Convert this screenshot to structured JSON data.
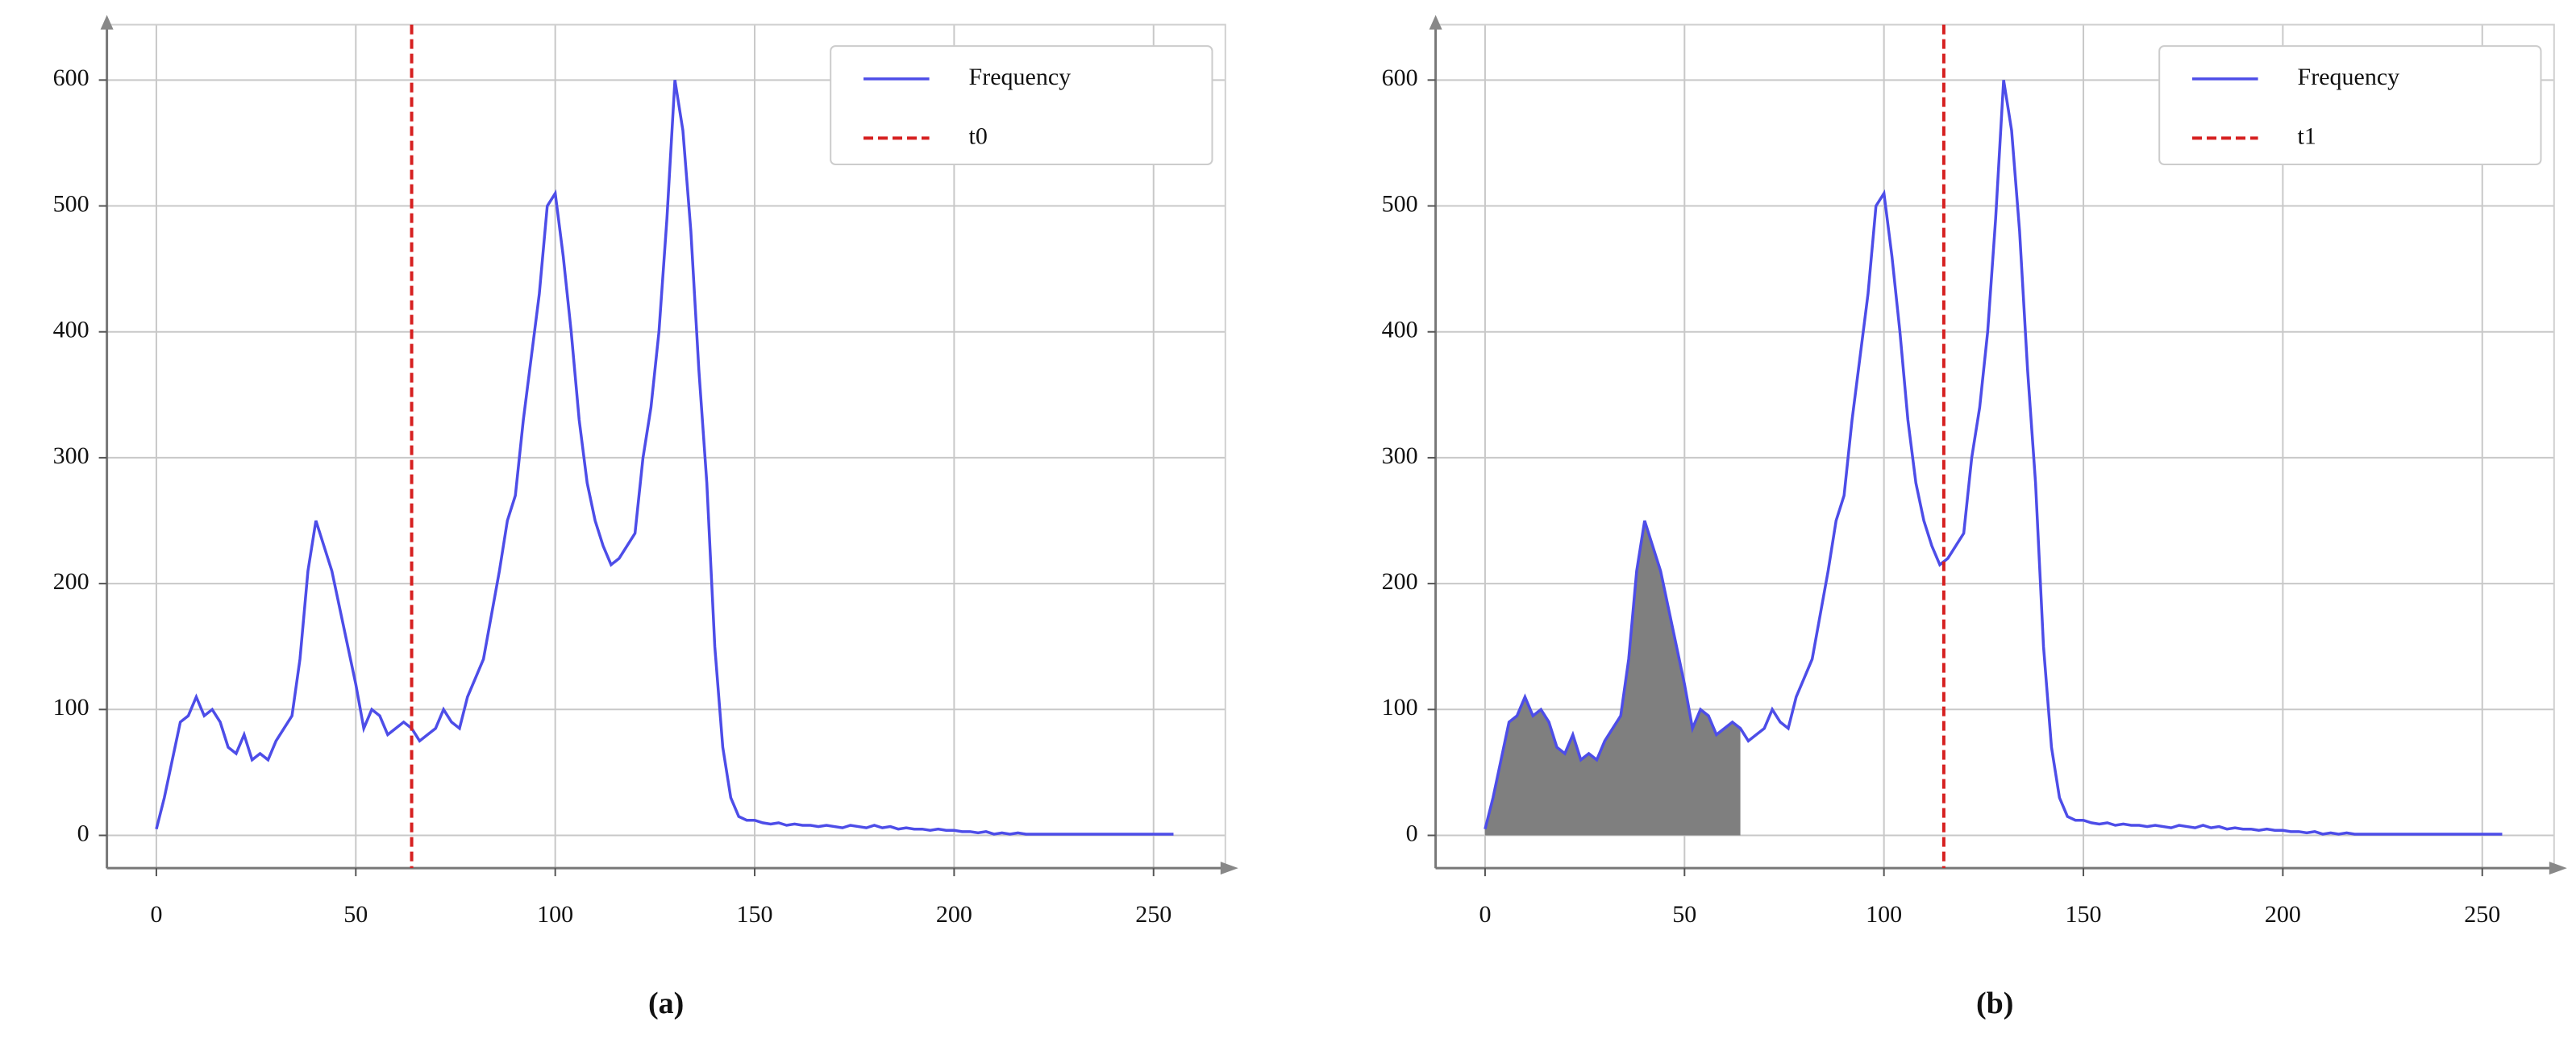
{
  "chart_data": [
    {
      "type": "line",
      "caption": "(a)",
      "x": [
        0,
        2,
        4,
        6,
        8,
        10,
        12,
        14,
        16,
        18,
        20,
        22,
        24,
        26,
        28,
        30,
        32,
        34,
        36,
        38,
        40,
        42,
        44,
        46,
        48,
        50,
        52,
        54,
        56,
        58,
        60,
        62,
        64,
        66,
        68,
        70,
        72,
        74,
        76,
        78,
        80,
        82,
        84,
        86,
        88,
        90,
        92,
        94,
        96,
        98,
        100,
        102,
        104,
        106,
        108,
        110,
        112,
        114,
        116,
        118,
        120,
        122,
        124,
        126,
        128,
        130,
        132,
        134,
        136,
        138,
        140,
        142,
        144,
        146,
        148,
        150,
        152,
        154,
        156,
        158,
        160,
        162,
        164,
        166,
        168,
        170,
        172,
        174,
        176,
        178,
        180,
        182,
        184,
        186,
        188,
        190,
        192,
        194,
        196,
        198,
        200,
        202,
        204,
        206,
        208,
        210,
        212,
        214,
        216,
        218,
        220,
        222,
        224,
        226,
        228,
        230,
        232,
        234,
        236,
        238,
        240,
        242,
        244,
        246,
        248,
        250,
        252,
        254,
        255
      ],
      "series": [
        {
          "name": "Frequency",
          "color": "#4d4de8",
          "values": [
            5,
            30,
            60,
            90,
            95,
            110,
            95,
            100,
            90,
            70,
            65,
            80,
            60,
            65,
            60,
            75,
            85,
            95,
            140,
            210,
            250,
            230,
            210,
            180,
            150,
            120,
            85,
            100,
            95,
            80,
            85,
            90,
            85,
            75,
            80,
            85,
            100,
            90,
            85,
            110,
            125,
            140,
            175,
            210,
            250,
            270,
            330,
            380,
            430,
            500,
            510,
            460,
            400,
            330,
            280,
            250,
            230,
            215,
            220,
            230,
            240,
            300,
            340,
            400,
            490,
            600,
            560,
            480,
            370,
            280,
            150,
            70,
            30,
            15,
            12,
            12,
            10,
            9,
            10,
            8,
            9,
            8,
            8,
            7,
            8,
            7,
            6,
            8,
            7,
            6,
            8,
            6,
            7,
            5,
            6,
            5,
            5,
            4,
            5,
            4,
            4,
            3,
            3,
            2,
            3,
            1,
            2,
            1,
            2,
            1,
            1,
            1,
            1,
            1,
            1,
            1,
            1,
            1,
            1,
            1,
            1,
            1,
            1,
            1,
            1,
            1,
            1,
            1,
            1
          ]
        }
      ],
      "vlines": [
        {
          "name": "t0",
          "color": "#d62020",
          "x": 64
        }
      ],
      "xlim": [
        -12.4,
        268
      ],
      "ylim": [
        -26,
        644
      ],
      "xticks": [
        0,
        50,
        100,
        150,
        200,
        250
      ],
      "yticks": [
        0,
        100,
        200,
        300,
        400,
        500,
        600
      ],
      "grid": true,
      "legend": "upper right"
    },
    {
      "type": "line",
      "caption": "(b)",
      "x": [
        0,
        2,
        4,
        6,
        8,
        10,
        12,
        14,
        16,
        18,
        20,
        22,
        24,
        26,
        28,
        30,
        32,
        34,
        36,
        38,
        40,
        42,
        44,
        46,
        48,
        50,
        52,
        54,
        56,
        58,
        60,
        62,
        64,
        66,
        68,
        70,
        72,
        74,
        76,
        78,
        80,
        82,
        84,
        86,
        88,
        90,
        92,
        94,
        96,
        98,
        100,
        102,
        104,
        106,
        108,
        110,
        112,
        114,
        116,
        118,
        120,
        122,
        124,
        126,
        128,
        130,
        132,
        134,
        136,
        138,
        140,
        142,
        144,
        146,
        148,
        150,
        152,
        154,
        156,
        158,
        160,
        162,
        164,
        166,
        168,
        170,
        172,
        174,
        176,
        178,
        180,
        182,
        184,
        186,
        188,
        190,
        192,
        194,
        196,
        198,
        200,
        202,
        204,
        206,
        208,
        210,
        212,
        214,
        216,
        218,
        220,
        222,
        224,
        226,
        228,
        230,
        232,
        234,
        236,
        238,
        240,
        242,
        244,
        246,
        248,
        250,
        252,
        254,
        255
      ],
      "series": [
        {
          "name": "Frequency",
          "color": "#4d4de8",
          "values": [
            5,
            30,
            60,
            90,
            95,
            110,
            95,
            100,
            90,
            70,
            65,
            80,
            60,
            65,
            60,
            75,
            85,
            95,
            140,
            210,
            250,
            230,
            210,
            180,
            150,
            120,
            85,
            100,
            95,
            80,
            85,
            90,
            85,
            75,
            80,
            85,
            100,
            90,
            85,
            110,
            125,
            140,
            175,
            210,
            250,
            270,
            330,
            380,
            430,
            500,
            510,
            460,
            400,
            330,
            280,
            250,
            230,
            215,
            220,
            230,
            240,
            300,
            340,
            400,
            490,
            600,
            560,
            480,
            370,
            280,
            150,
            70,
            30,
            15,
            12,
            12,
            10,
            9,
            10,
            8,
            9,
            8,
            8,
            7,
            8,
            7,
            6,
            8,
            7,
            6,
            8,
            6,
            7,
            5,
            6,
            5,
            5,
            4,
            5,
            4,
            4,
            3,
            3,
            2,
            3,
            1,
            2,
            1,
            2,
            1,
            1,
            1,
            1,
            1,
            1,
            1,
            1,
            1,
            1,
            1,
            1,
            1,
            1,
            1,
            1,
            1,
            1,
            1,
            1
          ]
        }
      ],
      "vlines": [
        {
          "name": "t1",
          "color": "#d62020",
          "x": 115
        }
      ],
      "shade_xlim": [
        0,
        64
      ],
      "shade_color": "#7f7f7f",
      "xlim": [
        -12.4,
        268
      ],
      "ylim": [
        -26,
        644
      ],
      "xticks": [
        0,
        50,
        100,
        150,
        200,
        250
      ],
      "yticks": [
        0,
        100,
        200,
        300,
        400,
        500,
        600
      ],
      "grid": true,
      "legend": "upper right"
    }
  ]
}
